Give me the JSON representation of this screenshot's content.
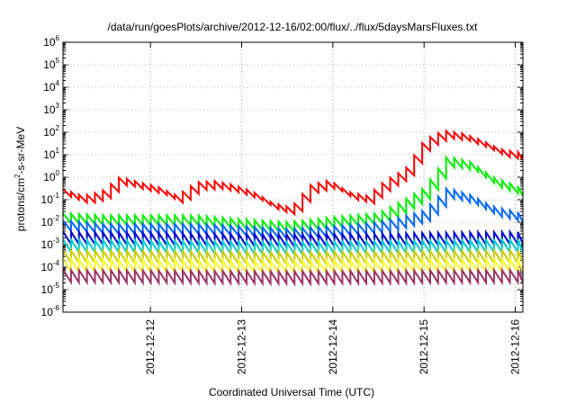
{
  "chart_data": {
    "type": "line",
    "title": "/data/run/goesPlots/archive/2012-12-16/02:00/flux/../flux/5daysMarsFluxes.txt",
    "xlabel": "Coordinated Universal Time (UTC)",
    "ylabel": "protons/cm²-s-sr-MeV",
    "yscale": "log",
    "ylim": [
      1e-06,
      1000000.0
    ],
    "xlim": [
      "2012-12-11 01:00",
      "2012-12-16 02:00"
    ],
    "x_ticks": [
      "2012-12-12",
      "2012-12-13",
      "2012-12-14",
      "2012-12-15",
      "2012-12-16"
    ],
    "y_ticks": [
      {
        "base": "10",
        "exp": "-6"
      },
      {
        "base": "10",
        "exp": "-5"
      },
      {
        "base": "10",
        "exp": "-4"
      },
      {
        "base": "10",
        "exp": "-3"
      },
      {
        "base": "10",
        "exp": "-2"
      },
      {
        "base": "10",
        "exp": "-1"
      },
      {
        "base": "10",
        "exp": "0"
      },
      {
        "base": "10",
        "exp": "1"
      },
      {
        "base": "10",
        "exp": "2"
      },
      {
        "base": "10",
        "exp": "3"
      },
      {
        "base": "10",
        "exp": "4"
      },
      {
        "base": "10",
        "exp": "5"
      },
      {
        "base": "10",
        "exp": "6"
      }
    ],
    "grid": true,
    "series": [
      {
        "color": "#ff0000",
        "x": [
          "2012-12-11 01:00",
          "2012-12-11 06:00",
          "2012-12-11 11:00",
          "2012-12-11 16:00",
          "2012-12-11 21:00",
          "2012-12-12 02:00",
          "2012-12-12 07:00",
          "2012-12-12 12:00",
          "2012-12-12 17:00",
          "2012-12-12 22:00",
          "2012-12-13 03:00",
          "2012-12-13 08:00",
          "2012-12-13 13:00",
          "2012-12-13 18:00",
          "2012-12-13 23:00",
          "2012-12-14 04:00",
          "2012-12-14 09:00",
          "2012-12-14 14:00",
          "2012-12-14 19:00",
          "2012-12-15 00:00",
          "2012-12-15 05:00",
          "2012-12-15 10:00",
          "2012-12-15 15:00",
          "2012-12-15 20:00",
          "2012-12-16 02:00"
        ],
        "values": [
          0.2,
          0.1,
          0.15,
          0.7,
          0.4,
          0.25,
          0.1,
          0.4,
          0.45,
          0.3,
          0.15,
          0.05,
          0.03,
          0.3,
          0.5,
          0.15,
          0.1,
          0.5,
          1.5,
          30,
          80,
          60,
          30,
          12,
          8
        ]
      },
      {
        "color": "#00ee00",
        "x": [
          "2012-12-11 01:00",
          "2012-12-11 12:00",
          "2012-12-12 00:00",
          "2012-12-12 12:00",
          "2012-12-13 00:00",
          "2012-12-13 12:00",
          "2012-12-14 00:00",
          "2012-12-14 12:00",
          "2012-12-14 18:00",
          "2012-12-15 00:00",
          "2012-12-15 06:00",
          "2012-12-15 12:00",
          "2012-12-15 18:00",
          "2012-12-16 02:00"
        ],
        "values": [
          0.015,
          0.012,
          0.012,
          0.012,
          0.008,
          0.006,
          0.01,
          0.015,
          0.05,
          0.2,
          5,
          3,
          0.6,
          0.2
        ]
      },
      {
        "color": "#0066ff",
        "x": [
          "2012-12-11 01:00",
          "2012-12-11 12:00",
          "2012-12-12 00:00",
          "2012-12-12 12:00",
          "2012-12-13 00:00",
          "2012-12-13 12:00",
          "2012-12-14 00:00",
          "2012-12-14 12:00",
          "2012-12-14 18:00",
          "2012-12-15 00:00",
          "2012-12-15 06:00",
          "2012-12-15 12:00",
          "2012-12-15 18:00",
          "2012-12-16 02:00"
        ],
        "values": [
          0.007,
          0.005,
          0.005,
          0.005,
          0.004,
          0.003,
          0.004,
          0.006,
          0.01,
          0.02,
          0.2,
          0.1,
          0.03,
          0.015
        ]
      },
      {
        "color": "#0000cc",
        "x": [
          "2012-12-11 01:00",
          "2012-12-13 12:00",
          "2012-12-16 02:00"
        ],
        "values": [
          0.002,
          0.0015,
          0.002
        ]
      },
      {
        "color": "#00cccc",
        "x": [
          "2012-12-11 01:00",
          "2012-12-13 12:00",
          "2012-12-16 02:00"
        ],
        "values": [
          0.0009,
          0.0007,
          0.0009
        ]
      },
      {
        "color": "#cccc00",
        "x": [
          "2012-12-11 01:00",
          "2012-12-13 12:00",
          "2012-12-16 02:00"
        ],
        "values": [
          0.0003,
          0.00025,
          0.0003
        ]
      },
      {
        "color": "#ffff33",
        "x": [
          "2012-12-11 01:00",
          "2012-12-13 12:00",
          "2012-12-16 02:00"
        ],
        "values": [
          0.00012,
          0.0001,
          0.00012
        ]
      },
      {
        "color": "#993366",
        "x": [
          "2012-12-11 01:00",
          "2012-12-13 12:00",
          "2012-12-16 02:00"
        ],
        "values": [
          4e-05,
          3.5e-05,
          4e-05
        ]
      }
    ]
  }
}
